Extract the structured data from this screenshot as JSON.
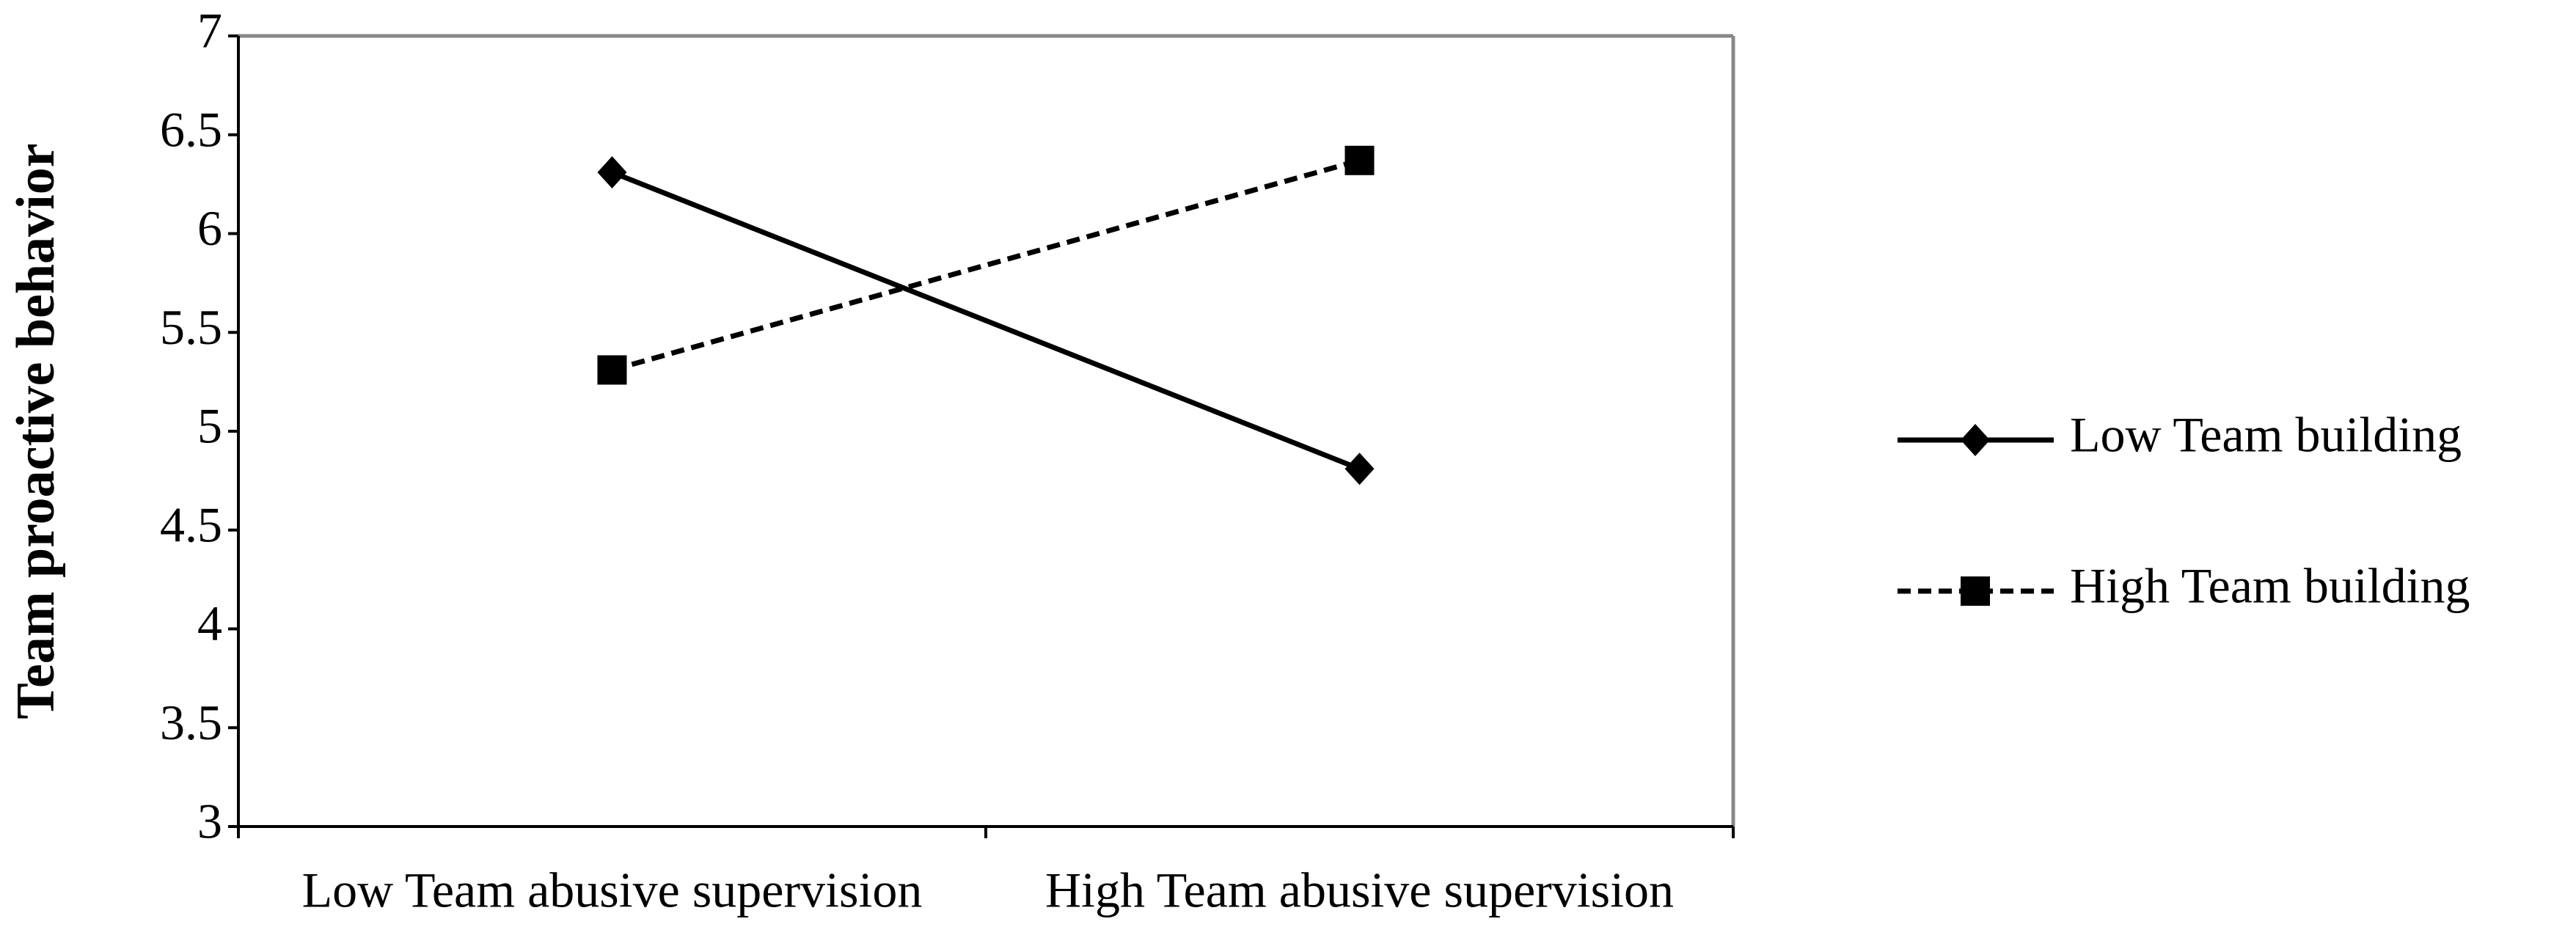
{
  "chart_data": {
    "type": "line",
    "ylabel": "Team proactive behavior",
    "categories": [
      "Low Team abusive supervision",
      "High Team abusive supervision"
    ],
    "series": [
      {
        "name": "Low Team building",
        "color": "#000000",
        "marker": "diamond",
        "dashed": false,
        "values": [
          6.31,
          4.81
        ]
      },
      {
        "name": "High Team building",
        "color": "#000000",
        "marker": "square",
        "dashed": true,
        "values": [
          5.31,
          6.37
        ]
      }
    ],
    "ylim": [
      3,
      7
    ],
    "yticks": [
      3,
      3.5,
      4,
      4.5,
      5,
      5.5,
      6,
      6.5,
      7
    ],
    "grid": false,
    "legend": "right"
  }
}
